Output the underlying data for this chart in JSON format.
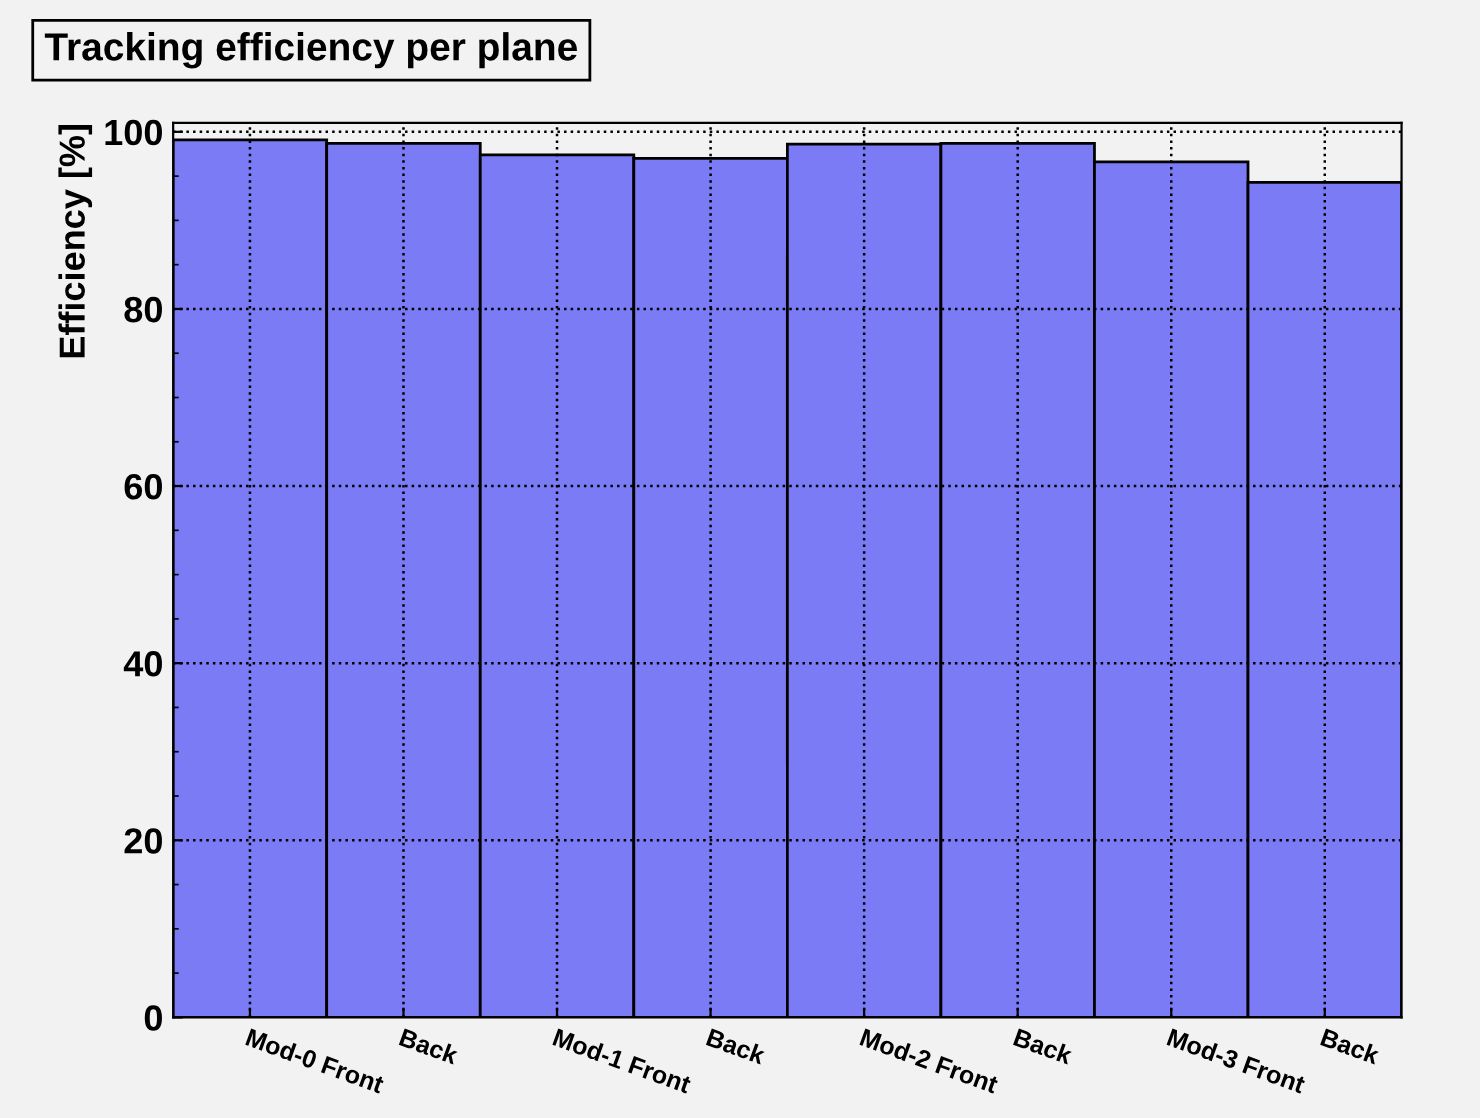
{
  "chart_data": {
    "type": "bar",
    "title": "Tracking efficiency per plane",
    "ylabel": "Efficiency [%]",
    "categories": [
      "Mod-0 Front",
      "Back",
      "Mod-1 Front",
      "Back",
      "Mod-2 Front",
      "Back",
      "Mod-3 Front",
      "Back"
    ],
    "values": [
      99.1,
      98.7,
      97.4,
      97.0,
      98.6,
      98.7,
      96.6,
      94.3
    ],
    "color": "#7b7bf5",
    "ylim": [
      0,
      101
    ],
    "yticks": [
      0,
      20,
      40,
      60,
      80,
      100
    ],
    "grid": true
  }
}
